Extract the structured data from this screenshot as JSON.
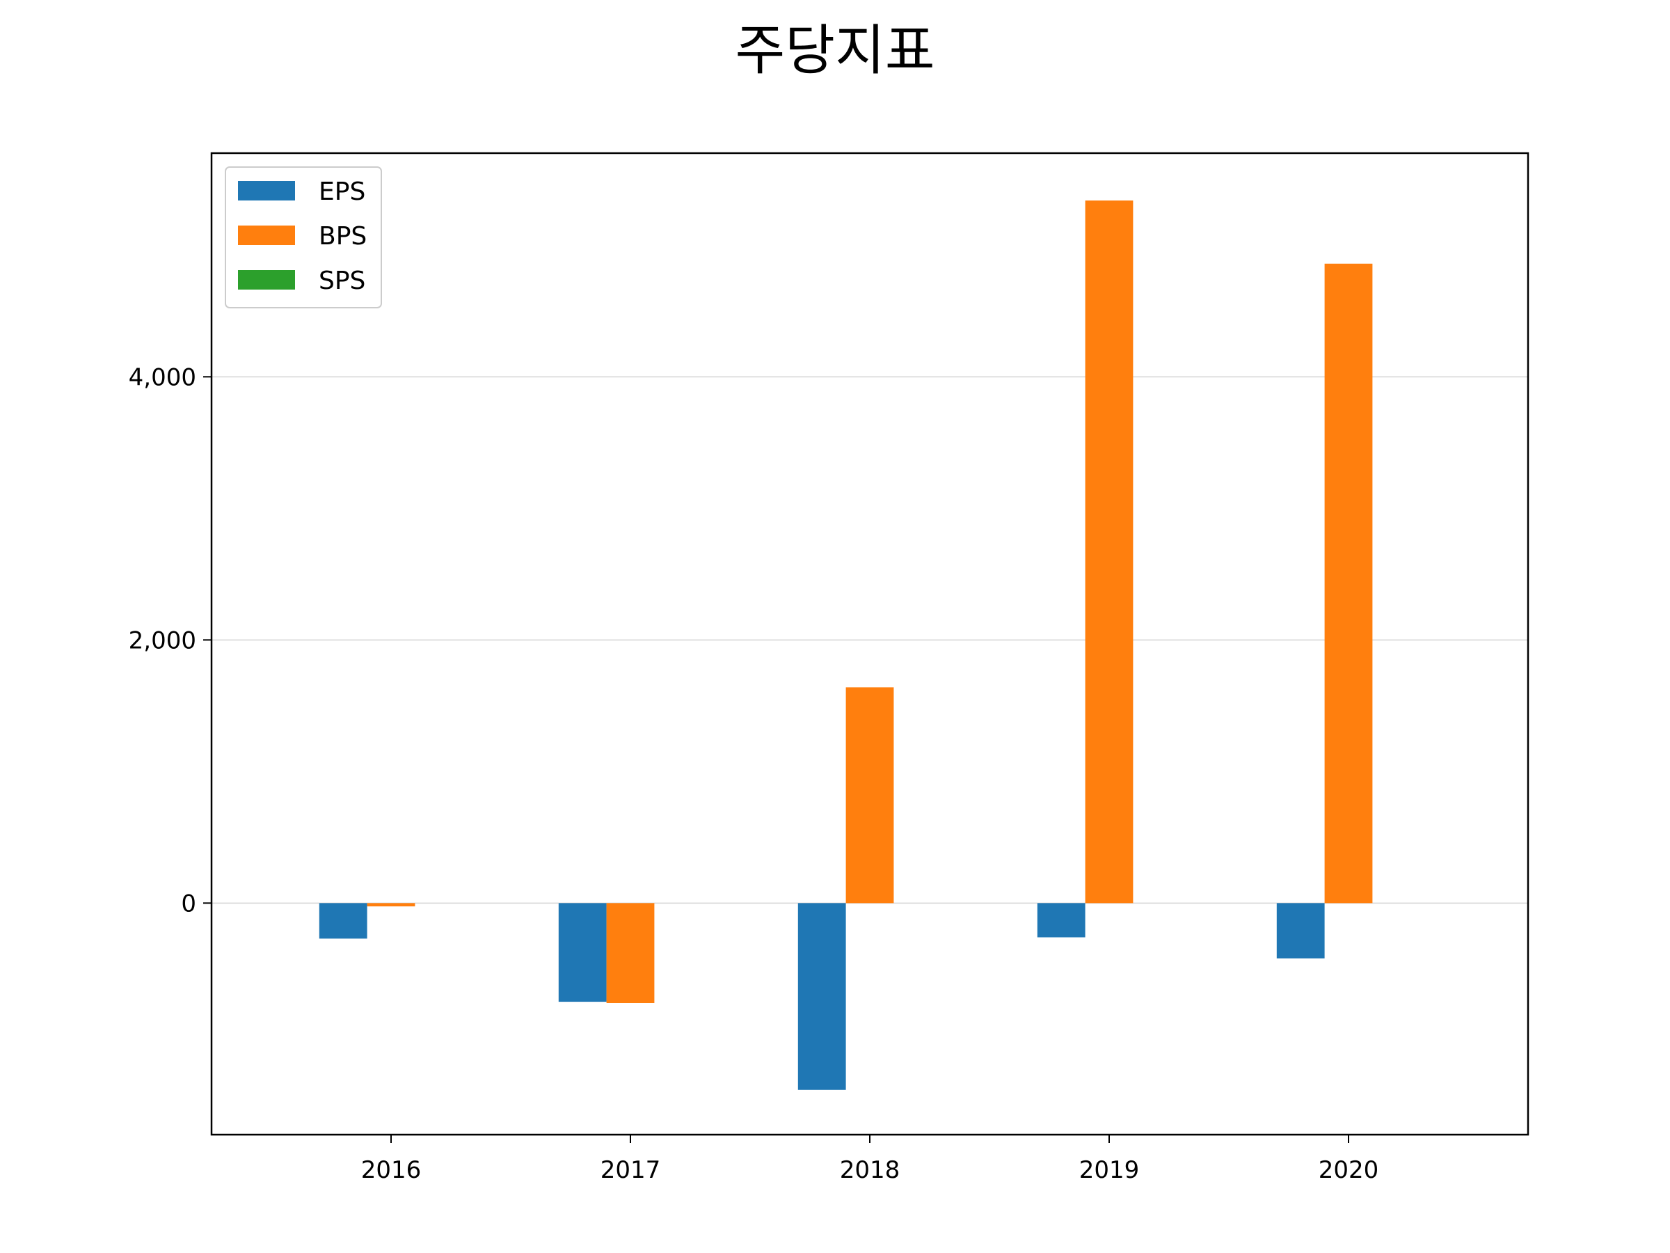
{
  "chart_data": {
    "type": "bar",
    "title": "주당지표",
    "xlabel": "",
    "ylabel": "",
    "categories": [
      "2016",
      "2017",
      "2018",
      "2019",
      "2020"
    ],
    "series": [
      {
        "name": "EPS",
        "color": "#1f77b4",
        "values": [
          -270,
          -750,
          -1420,
          -260,
          -420
        ]
      },
      {
        "name": "BPS",
        "color": "#ff7f0e",
        "values": [
          -25,
          -760,
          1640,
          5340,
          4860
        ]
      },
      {
        "name": "SPS",
        "color": "#2ca02c",
        "values": [
          0,
          0,
          0,
          0,
          0
        ]
      }
    ],
    "ylim": [
      -1760,
      5700
    ],
    "yticks": [
      0,
      2000,
      4000
    ],
    "ytick_labels": [
      "0",
      "2,000",
      "4,000"
    ],
    "grid": "y",
    "legend_position": "top-left"
  }
}
